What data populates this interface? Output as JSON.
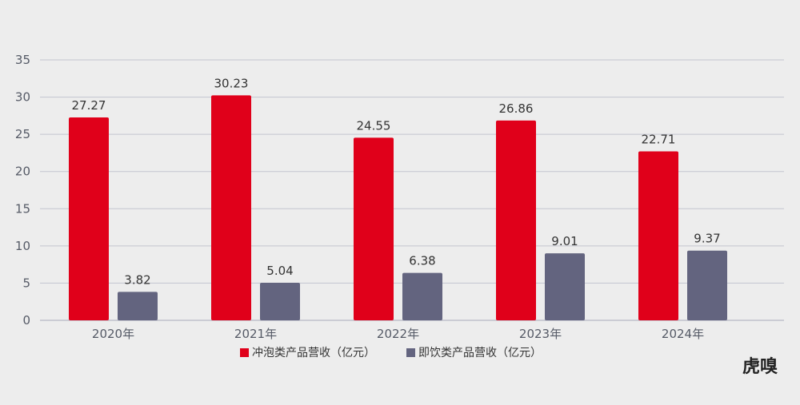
{
  "chart_data": {
    "type": "bar",
    "categories": [
      "2020年",
      "2021年",
      "2022年",
      "2023年",
      "2024年"
    ],
    "series": [
      {
        "name": "冲泡类产品营收（亿元）",
        "values": [
          27.27,
          30.23,
          24.55,
          26.86,
          22.71
        ],
        "color": "#e0001a"
      },
      {
        "name": "即饮类产品营收（亿元）",
        "values": [
          3.82,
          5.04,
          6.38,
          9.01,
          9.37
        ],
        "color": "#63647f"
      }
    ],
    "ylim": [
      0,
      35
    ],
    "yticks": [
      0,
      5,
      10,
      15,
      20,
      25,
      30,
      35
    ],
    "grid": true,
    "legend": "bottom-center"
  },
  "watermark": "虎嗅"
}
